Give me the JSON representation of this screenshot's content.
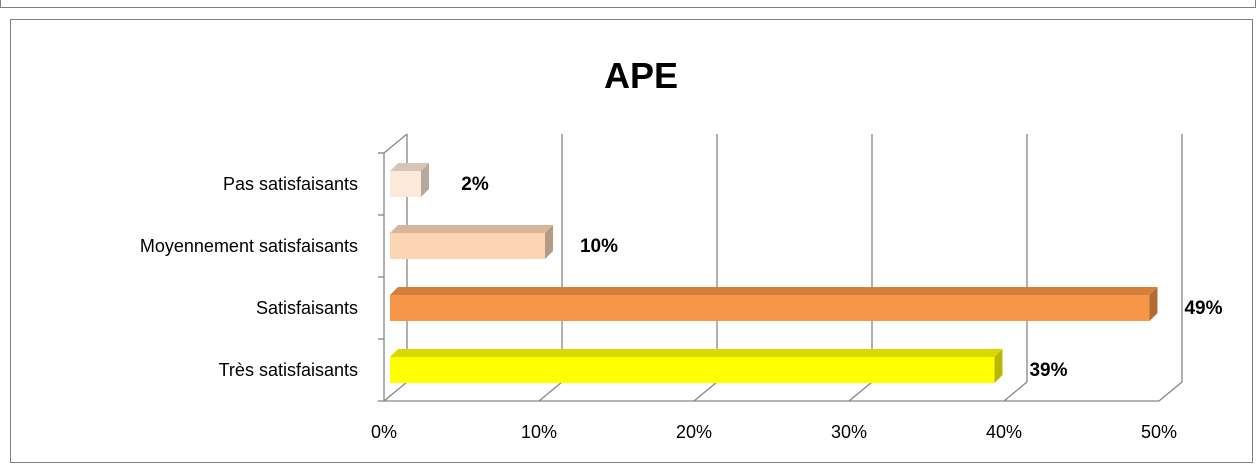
{
  "chart_data": {
    "type": "bar",
    "orientation": "horizontal",
    "three_d": true,
    "title": "APE",
    "categories": [
      "Très satisfaisants",
      "Satisfaisants",
      "Moyennement satisfaisants",
      "Pas satisfaisants"
    ],
    "values": [
      39,
      49,
      10,
      2
    ],
    "data_labels": [
      "39%",
      "49%",
      "10%",
      "2%"
    ],
    "colors": [
      "#FFFF00",
      "#F79646",
      "#FCD5B5",
      "#FDE9D9"
    ],
    "x_ticks": [
      "0%",
      "10%",
      "20%",
      "30%",
      "40%",
      "50%"
    ],
    "xlim": [
      0,
      50
    ],
    "grid": true,
    "legend": "none"
  }
}
